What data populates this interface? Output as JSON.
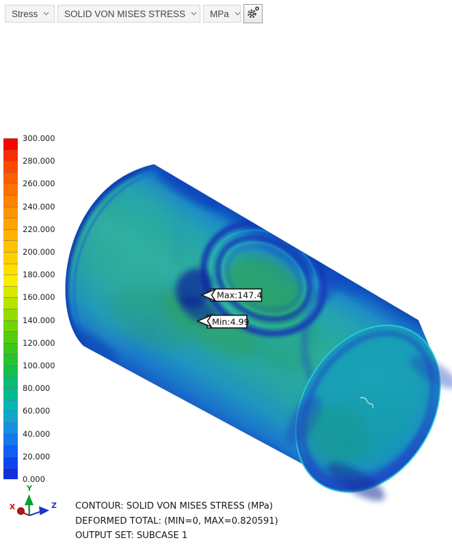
{
  "toolbar": {
    "result_type": {
      "label": "Stress"
    },
    "result_component": {
      "label": "SOLID VON MISES STRESS"
    },
    "units": {
      "label": "MPa"
    },
    "settings_icon": "gears-icon"
  },
  "legend": {
    "labels": [
      "300.000",
      "280.000",
      "260.000",
      "240.000",
      "220.000",
      "200.000",
      "180.000",
      "160.000",
      "140.000",
      "120.000",
      "100.000",
      "80.000",
      "60.000",
      "40.000",
      "20.000",
      "0.000"
    ],
    "segment_colors": [
      "#f90400",
      "#fa2c00",
      "#fb4a00",
      "#fc5f00",
      "#fd7300",
      "#fd8400",
      "#fe9400",
      "#fea300",
      "#ffb200",
      "#ffc100",
      "#ffd000",
      "#fee000",
      "#faee00",
      "#d8ea00",
      "#b5e400",
      "#92dc00",
      "#71d503",
      "#53cd0e",
      "#3ac81e",
      "#27c432",
      "#14c04c",
      "#07bd74",
      "#03bb92",
      "#06b6b4",
      "#0fa7cf",
      "#1691e2",
      "#1478ee",
      "#0f5ef6",
      "#0b45f2",
      "#1430dd"
    ]
  },
  "viewport": {
    "callouts": {
      "max": "Max:147.4",
      "min": "Min:4.99"
    },
    "triad": {
      "x": "X",
      "y": "Y",
      "z": "Z",
      "x_color": "#c01414",
      "y_color": "#0a9c32",
      "z_color": "#2038cc"
    },
    "model_colors": {
      "body_teal": "#2caa9b",
      "edge_blue": "#0e4cb8",
      "groove_navy": "#1637b4",
      "hotspot_green": "#2f9e46",
      "face_teal": "#1aa2b8",
      "rim_cyan": "#2bc8d6"
    }
  },
  "status": {
    "lines": [
      "CONTOUR: SOLID VON MISES STRESS (MPa)",
      "DEFORMED TOTAL: (MIN=0, MAX=0.820591)",
      "OUTPUT SET: SUBCASE 1"
    ]
  }
}
